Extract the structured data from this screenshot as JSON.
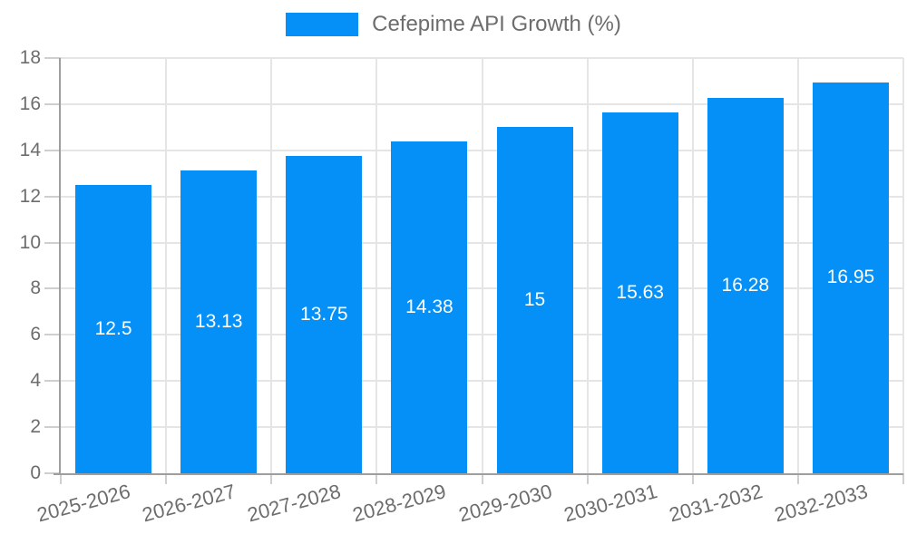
{
  "chart_data": {
    "type": "bar",
    "series_name": "Cefepime API Growth (%)",
    "categories": [
      "2025-2026",
      "2026-2027",
      "2027-2028",
      "2028-2029",
      "2029-2030",
      "2030-2031",
      "2031-2032",
      "2032-2033"
    ],
    "values": [
      12.5,
      13.13,
      13.75,
      14.38,
      15,
      15.63,
      16.28,
      16.95
    ],
    "value_labels": [
      "12.5",
      "13.13",
      "13.75",
      "14.38",
      "15",
      "15.63",
      "16.28",
      "16.95"
    ],
    "title": "",
    "xlabel": "",
    "ylabel": "",
    "ylim": [
      0,
      18
    ],
    "yticks": [
      0,
      2,
      4,
      6,
      8,
      10,
      12,
      14,
      16,
      18
    ],
    "grid": true,
    "legend_position": "top",
    "colors": {
      "bar": "#0590f8",
      "grid": "#e5e5e5",
      "axis": "#9e9e9e",
      "tick": "#cfcfcf",
      "label": "#6d6d6d",
      "value_text": "#ffffff"
    }
  }
}
